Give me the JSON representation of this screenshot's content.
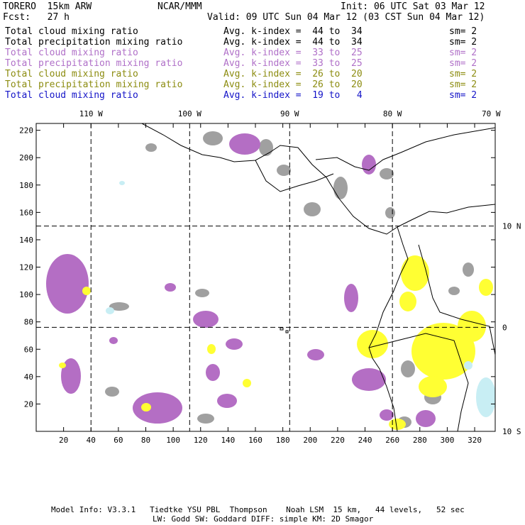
{
  "header": {
    "model": "TORERO  15km ARW",
    "org": "NCAR/MMM",
    "init": "Init: 06 UTC Sat 03 Mar 12",
    "fcst": "Fcst:   27 h",
    "valid": "Valid: 09 UTC Sun 04 Mar 12 (03 CST Sun 04 Mar 12)"
  },
  "legend": [
    {
      "name": "Total cloud mixing ratio",
      "kindex": "Avg. k-index =  44 to  34",
      "sm": "sm= 2",
      "color": "#000000"
    },
    {
      "name": "Total precipitation mixing ratio",
      "kindex": "Avg. k-index =  44 to  34",
      "sm": "sm= 2",
      "color": "#000000"
    },
    {
      "name": "Total cloud mixing ratio",
      "kindex": "Avg. k-index =  33 to  25",
      "sm": "sm= 2",
      "color": "#b070c8"
    },
    {
      "name": "Total precipitation mixing ratio",
      "kindex": "Avg. k-index =  33 to  25",
      "sm": "sm= 2",
      "color": "#b070c8"
    },
    {
      "name": "Total cloud mixing ratio",
      "kindex": "Avg. k-index =  26 to  20",
      "sm": "sm= 2",
      "color": "#8c8c10"
    },
    {
      "name": "Total precipitation mixing ratio",
      "kindex": "Avg. k-index =  26 to  20",
      "sm": "sm= 2",
      "color": "#8c8c10"
    },
    {
      "name": "Total cloud mixing ratio",
      "kindex": "Avg. k-index =  19 to   4",
      "sm": "sm= 2",
      "color": "#1414c8"
    }
  ],
  "footer": {
    "line1": "Model Info: V3.3.1   Tiedtke YSU PBL  Thompson    Noah LSM  15 km,   44 levels,   52 sec",
    "line2": "LW: Godd SW: Goddard DIFF: simple KM: 2D Smagor"
  },
  "chart_data": {
    "type": "heatmap",
    "title": "",
    "xlabel": "",
    "ylabel": "",
    "xlim": [
      0,
      335
    ],
    "ylim": [
      0,
      225
    ],
    "x_ticks": [
      20,
      40,
      60,
      80,
      100,
      120,
      140,
      160,
      180,
      200,
      220,
      240,
      260,
      280,
      300,
      320
    ],
    "x_tick_labels": [
      "20",
      "40",
      "60",
      "80",
      "100",
      "120",
      "140",
      "160",
      "180",
      "200",
      "220",
      "240",
      "260",
      "280",
      "300",
      "320"
    ],
    "y_ticks": [
      20,
      40,
      60,
      80,
      100,
      120,
      140,
      160,
      180,
      200,
      220
    ],
    "y_tick_labels": [
      "20",
      "40",
      "60",
      "80",
      "100",
      "120",
      "140",
      "160",
      "180",
      "200",
      "220"
    ],
    "lon_lines": [
      {
        "label": "110 W",
        "x": 40
      },
      {
        "label": "100 W",
        "x": 112
      },
      {
        "label": "90 W",
        "x": 185
      },
      {
        "label": "80 W",
        "x": 260
      },
      {
        "label": "70 W",
        "x": 332
      }
    ],
    "lat_lines": [
      {
        "label": "10 N",
        "y": 150
      },
      {
        "label": "0",
        "y": 76
      },
      {
        "label": "10 S",
        "y": 0
      }
    ],
    "grid": true,
    "category_colors": {
      "k_index_44_34": "#a0a0a0",
      "k_index_33_25": "#b46ec4",
      "k_index_26_20": "#ffff33",
      "k_index_19_4": "#c8eef4"
    }
  }
}
